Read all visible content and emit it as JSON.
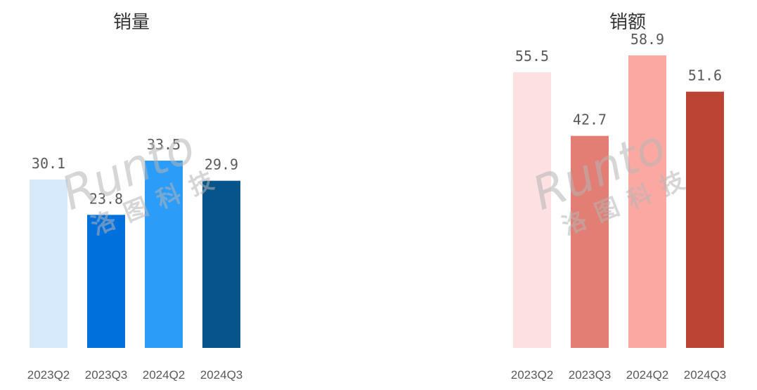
{
  "watermark": {
    "brand": "Runto",
    "cn": "洛图科技"
  },
  "chart_data": [
    {
      "type": "bar",
      "title": "销量",
      "categories": [
        "2023Q2",
        "2023Q3",
        "2024Q2",
        "2024Q3"
      ],
      "values": [
        30.1,
        23.8,
        33.5,
        29.9
      ],
      "colors": [
        "#d6eafc",
        "#0070dc",
        "#2b9cf8",
        "#06548a"
      ],
      "value_labels": [
        "30.1",
        "23.8",
        "33.5",
        "29.9"
      ],
      "ylim": [
        0,
        40
      ],
      "grid": false,
      "legend": "none"
    },
    {
      "type": "bar",
      "title": "销额",
      "categories": [
        "2023Q2",
        "2023Q3",
        "2024Q2",
        "2024Q3"
      ],
      "values": [
        55.5,
        42.7,
        58.9,
        51.6
      ],
      "colors": [
        "#fde0e2",
        "#e37e74",
        "#fba8a3",
        "#bc4434"
      ],
      "value_labels": [
        "55.5",
        "42.7",
        "58.9",
        "51.6"
      ],
      "ylim": [
        0,
        60
      ],
      "grid": false,
      "legend": "none"
    }
  ]
}
